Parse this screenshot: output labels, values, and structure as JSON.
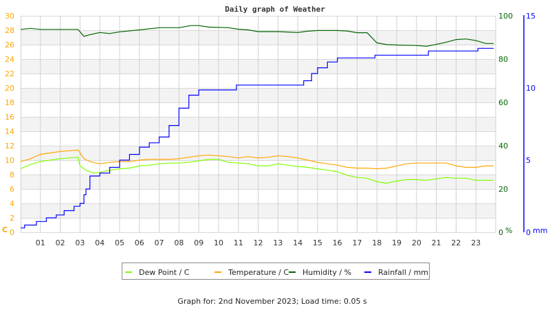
{
  "chart_data": {
    "type": "line",
    "title": "Daily graph of Weather",
    "footer": "Graph for: 2nd November 2023; Load time: 0.05 s",
    "x": {
      "label": "",
      "range": [
        0,
        24
      ],
      "ticks": [
        "01",
        "02",
        "03",
        "04",
        "05",
        "06",
        "07",
        "08",
        "09",
        "10",
        "11",
        "12",
        "13",
        "14",
        "15",
        "16",
        "17",
        "18",
        "19",
        "20",
        "21",
        "22",
        "23"
      ]
    },
    "axes": {
      "left": {
        "unit": "C",
        "range": [
          0,
          30
        ],
        "ticks": [
          0,
          2,
          4,
          6,
          8,
          10,
          12,
          14,
          16,
          18,
          20,
          22,
          24,
          26,
          28,
          30
        ],
        "color": "#ffa500"
      },
      "right_humidity": {
        "unit": "%",
        "range": [
          0,
          100
        ],
        "ticks": [
          0,
          20,
          40,
          60,
          80,
          100
        ],
        "color": "#006400"
      },
      "right_rain": {
        "unit": "mm",
        "range": [
          0,
          15
        ],
        "ticks": [
          0,
          5,
          10,
          15
        ],
        "color": "#0000ff"
      }
    },
    "grid": true,
    "legend_position": "bottom",
    "series": [
      {
        "name": "Dew Point / C",
        "axis": "left",
        "color": "#7fff00",
        "points": [
          [
            0,
            8.8
          ],
          [
            0.5,
            9.4
          ],
          [
            1,
            9.8
          ],
          [
            1.5,
            10.0
          ],
          [
            2,
            10.2
          ],
          [
            2.5,
            10.3
          ],
          [
            2.9,
            10.4
          ],
          [
            3.0,
            9.2
          ],
          [
            3.3,
            8.6
          ],
          [
            3.7,
            8.2
          ],
          [
            4,
            8.3
          ],
          [
            4.5,
            8.6
          ],
          [
            5,
            8.8
          ],
          [
            5.5,
            8.9
          ],
          [
            6,
            9.2
          ],
          [
            6.5,
            9.3
          ],
          [
            7,
            9.5
          ],
          [
            7.5,
            9.6
          ],
          [
            8,
            9.6
          ],
          [
            8.5,
            9.7
          ],
          [
            9,
            9.9
          ],
          [
            9.5,
            10.1
          ],
          [
            10,
            10.1
          ],
          [
            10.5,
            9.7
          ],
          [
            11,
            9.6
          ],
          [
            11.5,
            9.5
          ],
          [
            12,
            9.2
          ],
          [
            12.5,
            9.2
          ],
          [
            13,
            9.5
          ],
          [
            13.5,
            9.3
          ],
          [
            14,
            9.1
          ],
          [
            14.5,
            9.0
          ],
          [
            15,
            8.8
          ],
          [
            15.5,
            8.6
          ],
          [
            16,
            8.4
          ],
          [
            16.5,
            7.9
          ],
          [
            17,
            7.6
          ],
          [
            17.5,
            7.5
          ],
          [
            18,
            7.0
          ],
          [
            18.5,
            6.8
          ],
          [
            19,
            7.1
          ],
          [
            19.5,
            7.3
          ],
          [
            20,
            7.3
          ],
          [
            20.5,
            7.2
          ],
          [
            21,
            7.4
          ],
          [
            21.5,
            7.6
          ],
          [
            22,
            7.5
          ],
          [
            22.5,
            7.5
          ],
          [
            23,
            7.2
          ],
          [
            23.5,
            7.2
          ],
          [
            23.9,
            7.2
          ]
        ]
      },
      {
        "name": "Temperature / C",
        "axis": "left",
        "color": "#ffa500",
        "points": [
          [
            0,
            9.8
          ],
          [
            0.5,
            10.2
          ],
          [
            1,
            10.8
          ],
          [
            1.5,
            11.0
          ],
          [
            2,
            11.2
          ],
          [
            2.5,
            11.3
          ],
          [
            2.9,
            11.4
          ],
          [
            3.0,
            11.0
          ],
          [
            3.2,
            10.2
          ],
          [
            3.5,
            9.8
          ],
          [
            4,
            9.5
          ],
          [
            4.5,
            9.7
          ],
          [
            5,
            9.8
          ],
          [
            5.5,
            9.8
          ],
          [
            6,
            10.0
          ],
          [
            6.5,
            10.1
          ],
          [
            7,
            10.1
          ],
          [
            7.5,
            10.1
          ],
          [
            8,
            10.2
          ],
          [
            8.5,
            10.4
          ],
          [
            9,
            10.6
          ],
          [
            9.5,
            10.7
          ],
          [
            10,
            10.6
          ],
          [
            10.5,
            10.5
          ],
          [
            11,
            10.3
          ],
          [
            11.5,
            10.5
          ],
          [
            12,
            10.3
          ],
          [
            12.5,
            10.4
          ],
          [
            13,
            10.6
          ],
          [
            13.5,
            10.5
          ],
          [
            14,
            10.3
          ],
          [
            14.5,
            10.0
          ],
          [
            15,
            9.7
          ],
          [
            15.5,
            9.5
          ],
          [
            16,
            9.3
          ],
          [
            16.5,
            9.0
          ],
          [
            17,
            8.9
          ],
          [
            17.5,
            8.9
          ],
          [
            18,
            8.8
          ],
          [
            18.5,
            8.9
          ],
          [
            19,
            9.2
          ],
          [
            19.5,
            9.5
          ],
          [
            20,
            9.6
          ],
          [
            20.5,
            9.6
          ],
          [
            21,
            9.6
          ],
          [
            21.5,
            9.6
          ],
          [
            22,
            9.2
          ],
          [
            22.5,
            9.0
          ],
          [
            23,
            9.0
          ],
          [
            23.5,
            9.2
          ],
          [
            23.9,
            9.2
          ]
        ]
      },
      {
        "name": "Humidity / %",
        "axis": "right_humidity",
        "color": "#006400",
        "points": [
          [
            0,
            93.7
          ],
          [
            0.5,
            94.2
          ],
          [
            1,
            93.7
          ],
          [
            2,
            93.7
          ],
          [
            2.9,
            93.7
          ],
          [
            3.2,
            90.5
          ],
          [
            3.5,
            91.3
          ],
          [
            4,
            92.3
          ],
          [
            4.5,
            91.8
          ],
          [
            5,
            92.6
          ],
          [
            6,
            93.5
          ],
          [
            7,
            94.5
          ],
          [
            8,
            94.5
          ],
          [
            8.6,
            95.5
          ],
          [
            9,
            95.5
          ],
          [
            9.5,
            94.8
          ],
          [
            10.5,
            94.5
          ],
          [
            11,
            93.8
          ],
          [
            11.5,
            93.5
          ],
          [
            12,
            92.7
          ],
          [
            13,
            92.7
          ],
          [
            13.5,
            92.5
          ],
          [
            14,
            92.3
          ],
          [
            14.5,
            92.9
          ],
          [
            15,
            93.2
          ],
          [
            16,
            93.2
          ],
          [
            16.5,
            93.0
          ],
          [
            17,
            92.2
          ],
          [
            17.5,
            92.2
          ],
          [
            18,
            87.5
          ],
          [
            18.5,
            86.7
          ],
          [
            19,
            86.5
          ],
          [
            20,
            86.3
          ],
          [
            20.5,
            85.9
          ],
          [
            21,
            86.8
          ],
          [
            21.5,
            87.8
          ],
          [
            22,
            89.0
          ],
          [
            22.5,
            89.3
          ],
          [
            23,
            88.6
          ],
          [
            23.5,
            87.2
          ],
          [
            23.9,
            87.2
          ]
        ]
      },
      {
        "name": "Rainfall / mm",
        "axis": "right_rain",
        "color": "#0000ff",
        "points": [
          [
            0,
            0.3
          ],
          [
            0.2,
            0.5
          ],
          [
            0.8,
            0.75
          ],
          [
            1.3,
            1.0
          ],
          [
            1.8,
            1.2
          ],
          [
            2.2,
            1.5
          ],
          [
            2.7,
            1.8
          ],
          [
            3.0,
            2.0
          ],
          [
            3.2,
            2.6
          ],
          [
            3.3,
            3.0
          ],
          [
            3.5,
            3.9
          ],
          [
            4,
            4.1
          ],
          [
            4.5,
            4.5
          ],
          [
            5,
            5.0
          ],
          [
            5.5,
            5.4
          ],
          [
            6,
            5.9
          ],
          [
            6.5,
            6.2
          ],
          [
            7,
            6.6
          ],
          [
            7.5,
            7.4
          ],
          [
            8,
            8.6
          ],
          [
            8.5,
            9.5
          ],
          [
            9,
            9.86
          ],
          [
            10.8,
            9.86
          ],
          [
            10.9,
            10.2
          ],
          [
            14,
            10.2
          ],
          [
            14.3,
            10.5
          ],
          [
            14.7,
            11.0
          ],
          [
            15,
            11.4
          ],
          [
            15.5,
            11.8
          ],
          [
            16,
            12.08
          ],
          [
            17.8,
            12.08
          ],
          [
            17.9,
            12.27
          ],
          [
            20.5,
            12.27
          ],
          [
            20.6,
            12.56
          ],
          [
            23,
            12.56
          ],
          [
            23.1,
            12.75
          ],
          [
            23.9,
            12.75
          ]
        ]
      }
    ]
  }
}
